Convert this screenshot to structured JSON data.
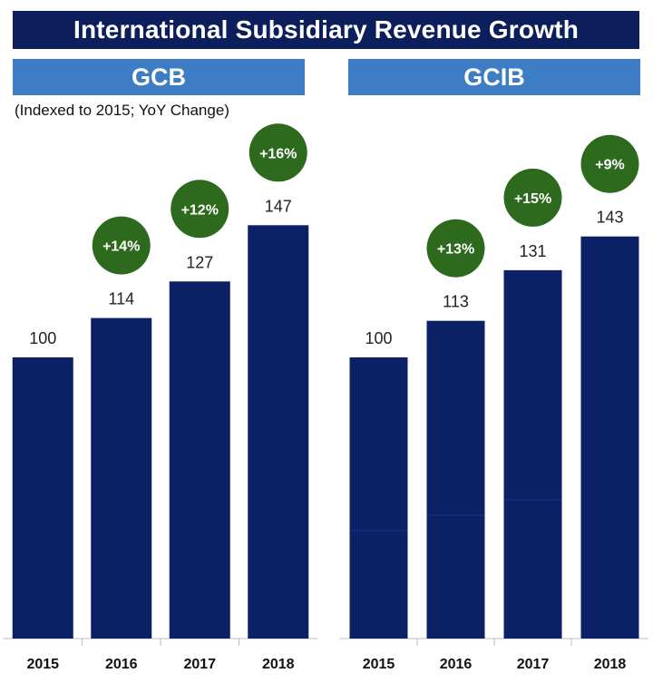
{
  "title": "International Subsidiary Revenue Growth",
  "subtitle": "(Indexed to 2015; YoY Change)",
  "colors": {
    "bar": "#0c2066",
    "badge": "#2d6a1e",
    "header": "#3d7dc6",
    "title_bg": "#0c1f5c"
  },
  "chart_data": [
    {
      "type": "bar",
      "title": "GCB",
      "categories": [
        "2015",
        "2016",
        "2017",
        "2018"
      ],
      "values": [
        100,
        114,
        127,
        147
      ],
      "yoy_change": [
        "",
        "+14%",
        "+12%",
        "+16%"
      ],
      "ylim": [
        0,
        147
      ]
    },
    {
      "type": "bar",
      "title": "GCIB",
      "categories": [
        "2015",
        "2016",
        "2017",
        "2018"
      ],
      "values": [
        100,
        113,
        131,
        143
      ],
      "yoy_change": [
        "",
        "+13%",
        "+15%",
        "+9%"
      ],
      "ylim": [
        0,
        143
      ]
    }
  ]
}
